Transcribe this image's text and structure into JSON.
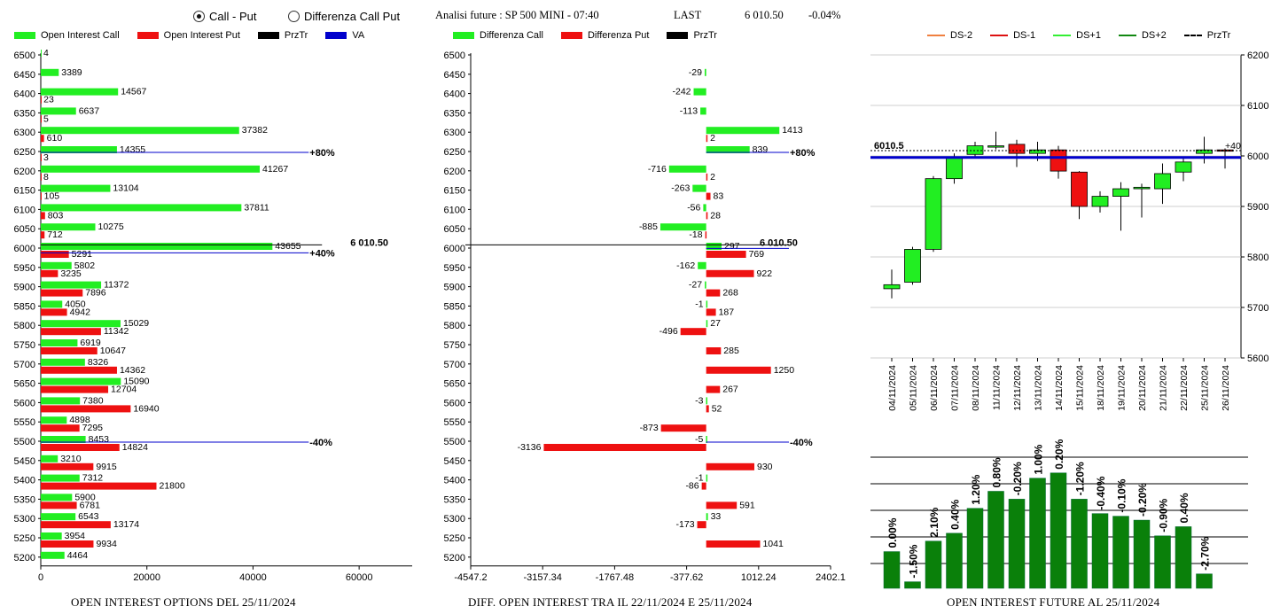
{
  "header": {
    "mode_options": [
      {
        "label": "Call - Put",
        "selected": true
      },
      {
        "label": "Differenza Call Put",
        "selected": false
      }
    ],
    "analysis_title": "Analisi future : SP 500 MINI - 07:40",
    "last_label": "LAST",
    "last_value": "6 010.50",
    "last_change": "-0.04%"
  },
  "colors": {
    "call": "#22ee22",
    "put": "#ee1111",
    "prztr": "#000000",
    "va": "#0000cc",
    "fut_bar": "#0a800a"
  },
  "chart_data": [
    {
      "type": "bar",
      "orientation": "horizontal",
      "legend": [
        {
          "label": "Open Interest Call",
          "color": "#22ee22"
        },
        {
          "label": "Open Interest Put",
          "color": "#ee1111"
        },
        {
          "label": "PrzTr",
          "color": "#000000"
        },
        {
          "label": "VA",
          "color": "#0000cc"
        }
      ],
      "footer": "OPEN INTEREST OPTIONS DEL 25/11/2024",
      "categories": [
        6500,
        6450,
        6400,
        6350,
        6300,
        6250,
        6200,
        6150,
        6100,
        6050,
        6000,
        5950,
        5900,
        5850,
        5800,
        5750,
        5700,
        5650,
        5600,
        5550,
        5500,
        5450,
        5400,
        5350,
        5300,
        5250,
        5200
      ],
      "series": [
        {
          "name": "Open Interest Call",
          "values": [
            4,
            3389,
            14567,
            6637,
            37382,
            14355,
            41267,
            13104,
            37811,
            10275,
            43655,
            5802,
            11372,
            4050,
            15029,
            6919,
            8326,
            15090,
            7380,
            4898,
            8453,
            3210,
            7312,
            5900,
            6543,
            3954,
            4464
          ]
        },
        {
          "name": "Open Interest Put",
          "values": [
            null,
            null,
            23,
            5,
            610,
            3,
            8,
            105,
            803,
            712,
            5291,
            3235,
            7896,
            4942,
            11342,
            10647,
            14362,
            12704,
            16940,
            7295,
            14824,
            9915,
            21800,
            6781,
            13174,
            9934,
            null
          ]
        }
      ],
      "x_ticks": [
        "0",
        "20000",
        "40000",
        "60000"
      ],
      "xlim": [
        0,
        70000
      ],
      "markers": [
        {
          "label": "+80%",
          "level": 6250
        },
        {
          "label": "+40%",
          "level": 5990
        },
        {
          "label": "-40%",
          "level": 5500
        }
      ],
      "price_label": "6 010.50",
      "price_level": 6010.5
    },
    {
      "type": "bar",
      "orientation": "horizontal",
      "legend": [
        {
          "label": "Differenza Call",
          "color": "#22ee22"
        },
        {
          "label": "Differenza Put",
          "color": "#ee1111"
        },
        {
          "label": "PrzTr",
          "color": "#000000"
        }
      ],
      "footer": "DIFF. OPEN INTEREST TRA IL 22/11/2024 E 25/11/2024",
      "categories": [
        6500,
        6450,
        6400,
        6350,
        6300,
        6250,
        6200,
        6150,
        6100,
        6050,
        6000,
        5950,
        5900,
        5850,
        5800,
        5750,
        5700,
        5650,
        5600,
        5550,
        5500,
        5450,
        5400,
        5350,
        5300,
        5250,
        5200
      ],
      "series": [
        {
          "name": "Differenza Call",
          "values": [
            null,
            -29,
            -242,
            -113,
            1413,
            839,
            -716,
            -263,
            -56,
            -885,
            297,
            -162,
            -27,
            -1,
            27,
            null,
            null,
            null,
            -3,
            null,
            -5,
            null,
            -1,
            null,
            33,
            null,
            null
          ]
        },
        {
          "name": "Differenza Put",
          "values": [
            null,
            null,
            null,
            null,
            2,
            null,
            2,
            83,
            28,
            -18,
            769,
            922,
            268,
            187,
            -496,
            285,
            1250,
            267,
            52,
            -873,
            -3136,
            930,
            -86,
            591,
            -173,
            1041,
            null
          ]
        }
      ],
      "x_ticks": [
        "-4547.2",
        "-3157.34",
        "-1767.48",
        "-377.62",
        "1012.24",
        "2402.1"
      ],
      "xlim": [
        -4547.2,
        2402.1
      ],
      "markers": [
        {
          "label": "+80%",
          "level": 6250
        },
        {
          "label": "-40%",
          "level": 5500
        }
      ],
      "price_label": "6 010.50",
      "price_level": 6010.5
    },
    {
      "type": "candlestick",
      "legend": [
        {
          "label": "DS-2",
          "color": "#f08040"
        },
        {
          "label": "DS-1",
          "color": "#dd1111"
        },
        {
          "label": "DS+1",
          "color": "#33ee33"
        },
        {
          "label": "DS+2",
          "color": "#118811"
        },
        {
          "label": "PrzTr",
          "color": "#000000"
        }
      ],
      "x": [
        "04/11/2024",
        "05/11/2024",
        "06/11/2024",
        "07/11/2024",
        "08/11/2024",
        "11/11/2024",
        "12/11/2024",
        "13/11/2024",
        "14/11/2024",
        "15/11/2024",
        "18/11/2024",
        "19/11/2024",
        "20/11/2024",
        "21/11/2024",
        "22/11/2024",
        "25/11/2024",
        "26/11/2024"
      ],
      "ohlc": [
        [
          5737,
          5775,
          5718,
          5745
        ],
        [
          5750,
          5820,
          5745,
          5815
        ],
        [
          5815,
          5960,
          5810,
          5955
        ],
        [
          5955,
          6005,
          5945,
          5998
        ],
        [
          6003,
          6028,
          5995,
          6020
        ],
        [
          6020,
          6048,
          6013,
          6020
        ],
        [
          6023,
          6032,
          5978,
          6005
        ],
        [
          6005,
          6028,
          5990,
          6012
        ],
        [
          6012,
          6020,
          5955,
          5970
        ],
        [
          5968,
          5970,
          5875,
          5900
        ],
        [
          5900,
          5930,
          5888,
          5920
        ],
        [
          5920,
          5948,
          5852,
          5935
        ],
        [
          5935,
          5945,
          5878,
          5938
        ],
        [
          5935,
          5985,
          5905,
          5965
        ],
        [
          5968,
          5996,
          5950,
          5988
        ],
        [
          6005,
          6038,
          5985,
          6012
        ],
        [
          6012,
          6015,
          5975,
          6010
        ]
      ],
      "y_ticks": [
        "6200",
        "6100",
        "6000",
        "5900",
        "5800",
        "5700",
        "5600"
      ],
      "ylim": [
        5600,
        6200
      ],
      "price_label": "6010.5",
      "price_level": 6010.5,
      "va_level": 5997,
      "right_label": "+40"
    },
    {
      "type": "bar",
      "footer": "OPEN INTEREST FUTURE AL 25/11/2024",
      "categories": [
        "04/11/2024",
        "05/11/2024",
        "06/11/2024",
        "07/11/2024",
        "08/11/2024",
        "11/11/2024",
        "12/11/2024",
        "13/11/2024",
        "14/11/2024",
        "15/11/2024",
        "18/11/2024",
        "19/11/2024",
        "20/11/2024",
        "21/11/2024",
        "22/11/2024",
        "25/11/2024",
        "26/11/2024"
      ],
      "values": [
        28,
        5,
        36,
        42,
        61,
        74,
        68,
        84,
        88,
        68,
        57,
        55,
        52,
        40,
        47,
        11,
        null
      ],
      "labels": [
        "0.00%",
        "-1.50%",
        "2.10%",
        "0.40%",
        "1.20%",
        "0.80%",
        "-0.20%",
        "1.00%",
        "0.20%",
        "-1.20%",
        "-0.40%",
        "-0.10%",
        "-0.20%",
        "-0.90%",
        "0.40%",
        "-2.70%",
        ""
      ],
      "ylim": [
        0,
        100
      ],
      "grid": true
    }
  ]
}
